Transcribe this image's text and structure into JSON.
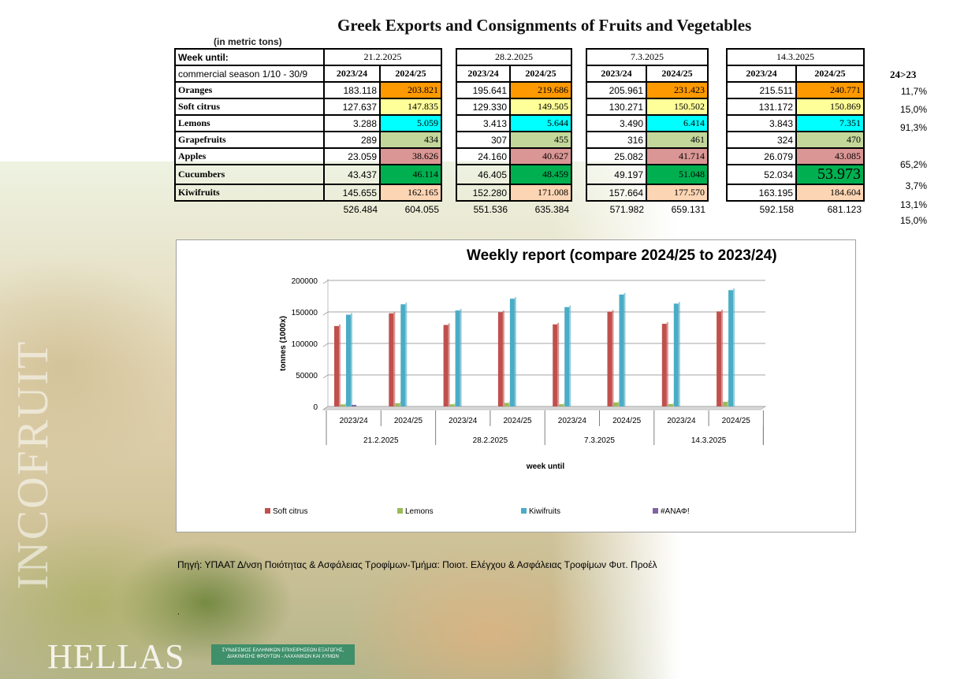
{
  "page": {
    "title": "Greek Exports and Consignments of Fruits and Vegetables",
    "unit": "(in metric tons)",
    "source": "Πηγή: ΥΠΑΑΤ  Δ/νση Ποιότητας & Ασφάλειας Τροφίμων-Τμήμα: Ποιοτ. Ελέγχου & Ασφάλειας Τροφίμων Φυτ. Προέλ",
    "dot": ".",
    "watermark": "INCOFRUIT",
    "hellas": "HELLAS",
    "org_logo": "ΣΥΝΔΕΣΜΟΣ ΕΛΛΗΝΙΚΩΝ ΕΠΙΧΕΙΡΗΣΕΩΝ ΕΞΑΓΩΓΗΣ, ΔΙΑΚΙΝΗΣΗΣ ΦΡΟΥΤΩΝ - ΛΑΧΑΝΙΚΩΝ ΚΑΙ ΧΥΜΩΝ"
  },
  "table": {
    "week_label": "Week until:",
    "season_label": "commercial season 1/10 - 30/9",
    "weeks": [
      "21.2.2025",
      "28.2.2025",
      "7.3.2025",
      "14.3.2025"
    ],
    "seasons": [
      "2023/24",
      "2024/25"
    ],
    "change_header": "24>23",
    "rows": [
      {
        "name": "Oranges",
        "color": "#ff9900",
        "values": [
          "183.118",
          "203.821",
          "195.641",
          "219.686",
          "205.961",
          "231.423",
          "215.511",
          "240.771"
        ],
        "change": "11,7%"
      },
      {
        "name": "Soft citrus",
        "color": "#ffff99",
        "values": [
          "127.637",
          "147.835",
          "129.330",
          "149.505",
          "130.271",
          "150.502",
          "131.172",
          "150.869"
        ],
        "change": "15,0%"
      },
      {
        "name": "Lemons",
        "color": "#00ffff",
        "values": [
          "3.288",
          "5.059",
          "3.413",
          "5.644",
          "3.490",
          "6.414",
          "3.843",
          "7.351"
        ],
        "change": "91,3%"
      },
      {
        "name": "Grapefruits",
        "color": "#c4d79b",
        "values": [
          "289",
          "434",
          "307",
          "455",
          "316",
          "461",
          "324",
          "470"
        ],
        "change": ""
      },
      {
        "name": "Apples",
        "color": "#da9694",
        "values": [
          "23.059",
          "38.626",
          "24.160",
          "40.627",
          "25.082",
          "41.714",
          "26.079",
          "43.085"
        ],
        "change": "65,2%"
      },
      {
        "name": "Cucumbers",
        "color": "#00b050",
        "values": [
          "43.437",
          "46.114",
          "46.405",
          "48.459",
          "49.197",
          "51.048",
          "52.034",
          "53.973"
        ],
        "change": "3,7%"
      },
      {
        "name": "Kiwifruits",
        "color": "#fcd5b4",
        "values": [
          "145.655",
          "162.165",
          "152.280",
          "171.008",
          "157.664",
          "177.570",
          "163.195",
          "184.604"
        ],
        "change": "13,1%"
      }
    ],
    "totals": [
      "526.484",
      "604.055",
      "551.536",
      "635.384",
      "571.982",
      "659.131",
      "592.158",
      "681.123"
    ],
    "totals_change": "15,0%"
  },
  "chart_data": {
    "type": "bar",
    "title": "Weekly report (compare 2024/25 to 2023/24)",
    "xlabel": "week until",
    "ylabel": "tonnes (1000x)",
    "ylim": [
      0,
      200000
    ],
    "yticks": [
      "0",
      "50000",
      "100000",
      "150000",
      "200000"
    ],
    "groups": [
      "21.2.2025",
      "28.2.2025",
      "7.3.2025",
      "14.3.2025"
    ],
    "categories": [
      "2023/24",
      "2024/25",
      "2023/24",
      "2024/25",
      "2023/24",
      "2024/25",
      "2023/24",
      "2024/25"
    ],
    "series": [
      {
        "name": "Soft citrus",
        "color": "#c0504d",
        "values": [
          127637,
          147835,
          129330,
          149505,
          130271,
          150502,
          131172,
          150869
        ]
      },
      {
        "name": "Lemons",
        "color": "#9bbb59",
        "values": [
          3288,
          5059,
          3413,
          5644,
          3490,
          6414,
          3843,
          7351
        ]
      },
      {
        "name": "Kiwifruits",
        "color": "#4bacc6",
        "values": [
          145655,
          162165,
          152280,
          171008,
          157664,
          177570,
          163195,
          184604
        ]
      },
      {
        "name": "#ΑΝΑΦ!",
        "color": "#8064a2",
        "values": [
          0,
          0,
          0,
          0,
          0,
          0,
          0,
          0
        ]
      }
    ],
    "grid": true,
    "legend": "bottom"
  }
}
